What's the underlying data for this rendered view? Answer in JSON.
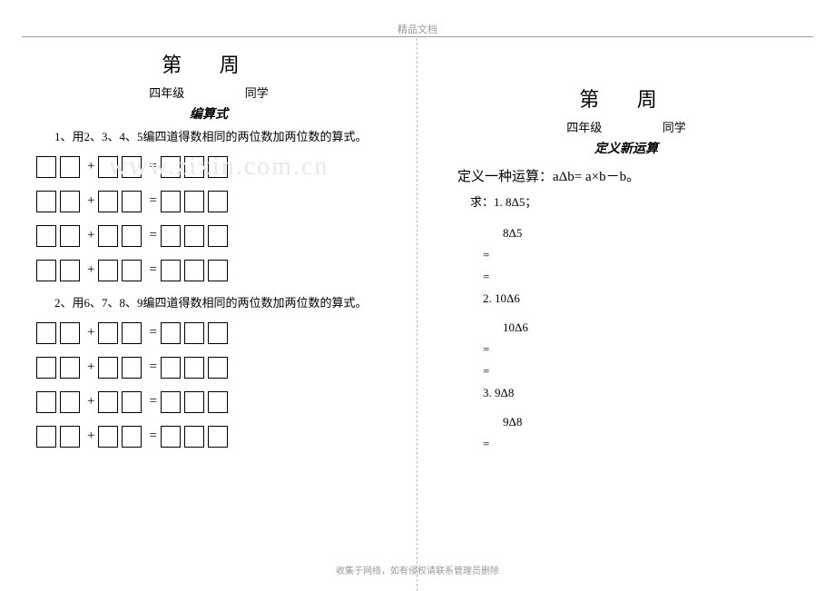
{
  "header": {
    "text": "精品文档"
  },
  "footer": {
    "text": "收集于网络，如有侵权请联系管理员删除"
  },
  "watermark": "www.zixin.com.cn",
  "left": {
    "title": "第 周",
    "grade": "四年级",
    "student": "同学",
    "section": "编算式",
    "p1": "1、用2、3、4、5编四道得数相同的两位数加两位数的算式。",
    "p2": "2、用6、7、8、9编四道得数相同的两位数加两位数的算式。",
    "ops": {
      "plus": "+",
      "eq": "="
    }
  },
  "right": {
    "title": "第 周",
    "grade": "四年级",
    "student": "同学",
    "section": "定义新运算",
    "define": "定义一种运算：aΔb= a×b－b。",
    "solve": "求：1.  8Δ5；",
    "q1": {
      "expr": "8Δ5"
    },
    "q2": {
      "label": "2.  10Δ6",
      "expr": "10Δ6"
    },
    "q3": {
      "label": "3.  9Δ8",
      "expr": "9Δ8"
    },
    "eq": "="
  }
}
